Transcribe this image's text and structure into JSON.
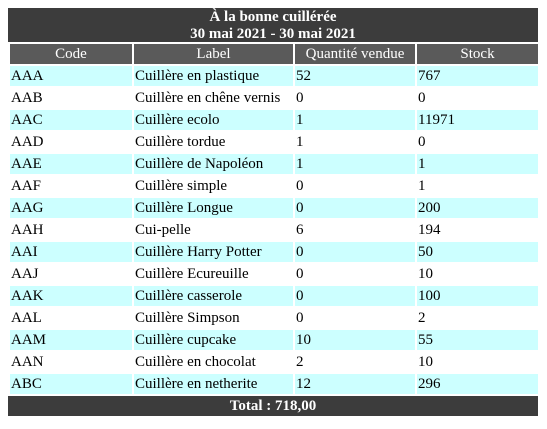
{
  "report": {
    "title_line1": "À la bonne cuillérée",
    "title_line2": "30 mai 2021 - 30 mai 2021",
    "total": "Total : 718,00"
  },
  "columns": [
    "Code",
    "Label",
    "Quantité vendue",
    "Stock"
  ],
  "rows": [
    {
      "code": "AAA",
      "label": "Cuillère en plastique",
      "qty": "52",
      "stock": "767"
    },
    {
      "code": "AAB",
      "label": "Cuillère en chêne vernis",
      "qty": "0",
      "stock": "0"
    },
    {
      "code": "AAC",
      "label": "Cuillère ecolo",
      "qty": "1",
      "stock": "11971"
    },
    {
      "code": "AAD",
      "label": "Cuillère tordue",
      "qty": "1",
      "stock": "0"
    },
    {
      "code": "AAE",
      "label": "Cuillère de Napoléon",
      "qty": "1",
      "stock": "1"
    },
    {
      "code": "AAF",
      "label": "Cuillère simple",
      "qty": "0",
      "stock": "1"
    },
    {
      "code": "AAG",
      "label": "Cuillère Longue",
      "qty": "0",
      "stock": "200"
    },
    {
      "code": "AAH",
      "label": "Cui-pelle",
      "qty": "6",
      "stock": "194"
    },
    {
      "code": "AAI",
      "label": "Cuillère Harry Potter",
      "qty": "0",
      "stock": "50"
    },
    {
      "code": "AAJ",
      "label": "Cuillère Ecureuille",
      "qty": "0",
      "stock": "10"
    },
    {
      "code": "AAK",
      "label": "Cuillère casserole",
      "qty": "0",
      "stock": "100"
    },
    {
      "code": "AAL",
      "label": "Cuillère Simpson",
      "qty": "0",
      "stock": "2"
    },
    {
      "code": "AAM",
      "label": "Cuillère cupcake",
      "qty": "10",
      "stock": "55"
    },
    {
      "code": "AAN",
      "label": "Cuillère en chocolat",
      "qty": "2",
      "stock": "10"
    },
    {
      "code": "ABC",
      "label": "Cuillère en netherite",
      "qty": "12",
      "stock": "296"
    }
  ],
  "colors": {
    "title_bg": "#3c3c3c",
    "header_bg": "#5a5a5a",
    "row_alt_bg": "#ccffff",
    "row_bg": "#ffffff"
  }
}
